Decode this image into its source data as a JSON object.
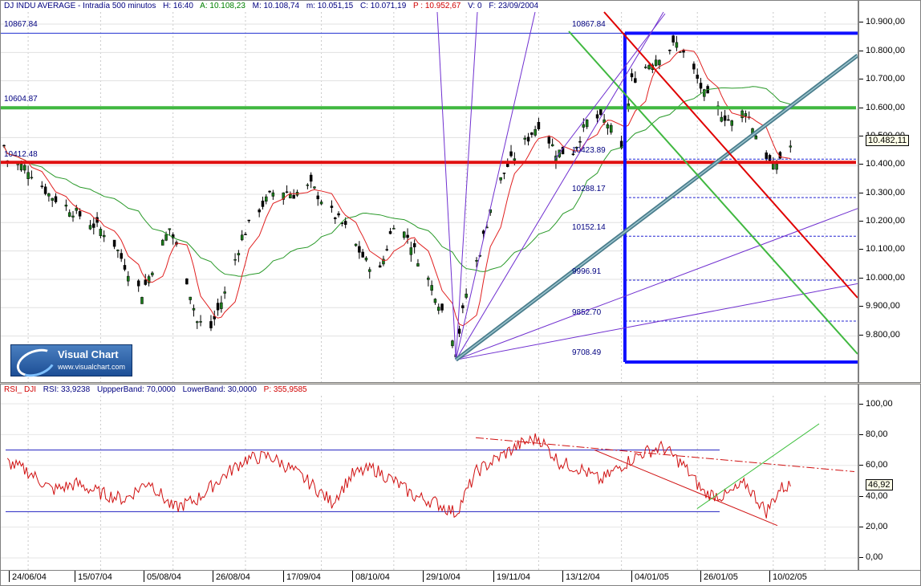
{
  "header": {
    "symbol": "DJ INDU AVERAGE - Intradía 500 minutos",
    "h": "H: 16:40",
    "a": "A: 10.108,23",
    "m": "M: 10.108,74",
    "mn": "m: 10.051,15",
    "c": "C: 10.071,19",
    "p": "P : 10.952,67",
    "v": "V: 0",
    "f": "F: 23/09/2004"
  },
  "rsi_header": {
    "name": "RSI_ DJI",
    "rsi": "RSI: 33,9238",
    "upper": "UppperBand: 70,0000",
    "lower": "LowerBand: 30,0000",
    "p": "P: 355,9585"
  },
  "logo": {
    "title": "Visual Chart",
    "url": "www.visualchart.com"
  },
  "price_axis": {
    "ticks": [
      "10.900,00",
      "10.800,00",
      "10.700,00",
      "10.600,00",
      "10.500,00",
      "10.400,00",
      "10.300,00",
      "10.200,00",
      "10.100,00",
      "10.000,00",
      "9.900,00",
      "9.800,00"
    ],
    "current_value": "10.482,11"
  },
  "rsi_axis": {
    "ticks": [
      "100,00",
      "80,00",
      "60,00",
      "40,00",
      "20,00",
      "0,00"
    ],
    "current_value": "46,92"
  },
  "time_axis": [
    "24/06/04",
    "15/07/04",
    "05/08/04",
    "26/08/04",
    "17/09/04",
    "08/10/04",
    "29/10/04",
    "19/11/04",
    "13/12/04",
    "04/01/05",
    "26/01/05",
    "10/02/05"
  ],
  "levels": {
    "left_top": "10867.84",
    "left_green": "10604.87",
    "left_red": "10412.48",
    "fib": [
      "10867.84",
      "10423.89",
      "10288.17",
      "10152.14",
      "9996.91",
      "9852.70",
      "9708.49"
    ]
  },
  "colors": {
    "candle": "#1a7a1a",
    "ma_fast": "#e02020",
    "ma_slow": "#2a9a2a",
    "support": "#e01010",
    "resistance": "#40b840",
    "fib_box": "#1010ff",
    "fan": "#7030d0",
    "channel": "#4a7d8c",
    "rsi": "#d01010"
  },
  "chart_data": [
    {
      "type": "candlestick",
      "title": "DJ INDU AVERAGE - Intradía 500 minutos",
      "ylim": [
        9700,
        10950
      ],
      "x_labels": [
        "24/06/04",
        "15/07/04",
        "05/08/04",
        "26/08/04",
        "17/09/04",
        "08/10/04",
        "29/10/04",
        "19/11/04",
        "13/12/04",
        "04/01/05",
        "26/01/05",
        "10/02/05"
      ],
      "close_path": [
        [
          "2004-06-18",
          10420
        ],
        [
          "2004-06-24",
          10390
        ],
        [
          "2004-06-30",
          10300
        ],
        [
          "2004-07-06",
          10250
        ],
        [
          "2004-07-12",
          10200
        ],
        [
          "2004-07-18",
          10150
        ],
        [
          "2004-07-22",
          10050
        ],
        [
          "2004-07-27",
          9950
        ],
        [
          "2004-08-01",
          10100
        ],
        [
          "2004-08-04",
          10180
        ],
        [
          "2004-08-08",
          10050
        ],
        [
          "2004-08-12",
          9850
        ],
        [
          "2004-08-16",
          9830
        ],
        [
          "2004-08-20",
          9950
        ],
        [
          "2004-08-25",
          10150
        ],
        [
          "2004-08-30",
          10250
        ],
        [
          "2004-09-04",
          10320
        ],
        [
          "2004-09-09",
          10300
        ],
        [
          "2004-09-14",
          10330
        ],
        [
          "2004-09-19",
          10250
        ],
        [
          "2004-09-24",
          10180
        ],
        [
          "2004-09-30",
          10060
        ],
        [
          "2004-10-04",
          10030
        ],
        [
          "2004-10-08",
          10200
        ],
        [
          "2004-10-12",
          10150
        ],
        [
          "2004-10-16",
          10050
        ],
        [
          "2004-10-20",
          9950
        ],
        [
          "2004-10-25",
          9800
        ],
        [
          "2004-10-26",
          9750
        ],
        [
          "2004-10-29",
          9950
        ],
        [
          "2004-11-02",
          10100
        ],
        [
          "2004-11-06",
          10300
        ],
        [
          "2004-11-10",
          10400
        ],
        [
          "2004-11-16",
          10500
        ],
        [
          "2004-11-19",
          10550
        ],
        [
          "2004-11-24",
          10450
        ],
        [
          "2004-11-29",
          10450
        ],
        [
          "2004-12-04",
          10580
        ],
        [
          "2004-12-09",
          10550
        ],
        [
          "2004-12-13",
          10450
        ],
        [
          "2004-12-16",
          10700
        ],
        [
          "2004-12-20",
          10750
        ],
        [
          "2004-12-25",
          10800
        ],
        [
          "2004-12-29",
          10830
        ],
        [
          "2005-01-02",
          10760
        ],
        [
          "2005-01-06",
          10650
        ],
        [
          "2005-01-10",
          10600
        ],
        [
          "2005-01-14",
          10550
        ],
        [
          "2005-01-18",
          10600
        ],
        [
          "2005-01-22",
          10480
        ],
        [
          "2005-01-26",
          10390
        ],
        [
          "2005-01-30",
          10470
        ]
      ],
      "moving_averages": [
        "fast (red)",
        "slow (green)"
      ],
      "horizontal_levels": [
        10867.84,
        10604.87,
        10412.48
      ],
      "fibonacci_retracement": {
        "from": 9708.49,
        "to": 10867.84,
        "levels": [
          10867.84,
          10423.89,
          10288.17,
          10152.14,
          9996.91,
          9852.7,
          9708.49
        ]
      },
      "current_value": 10482.11
    },
    {
      "type": "line",
      "title": "RSI_ DJI",
      "ylim": [
        0,
        100
      ],
      "upper_band": 70,
      "lower_band": 30,
      "last_value": 46.92,
      "rsi_value": 33.9238,
      "x_labels": [
        "24/06/04",
        "15/07/04",
        "05/08/04",
        "26/08/04",
        "17/09/04",
        "08/10/04",
        "29/10/04",
        "19/11/04",
        "13/12/04",
        "04/01/05",
        "26/01/05",
        "10/02/05"
      ],
      "path": [
        [
          "2004-06-18",
          62
        ],
        [
          "2004-06-24",
          56
        ],
        [
          "2004-07-01",
          44
        ],
        [
          "2004-07-08",
          48
        ],
        [
          "2004-07-15",
          42
        ],
        [
          "2004-07-22",
          38
        ],
        [
          "2004-07-29",
          50
        ],
        [
          "2004-08-05",
          32
        ],
        [
          "2004-08-12",
          38
        ],
        [
          "2004-08-19",
          52
        ],
        [
          "2004-08-26",
          64
        ],
        [
          "2004-09-02",
          66
        ],
        [
          "2004-09-08",
          58
        ],
        [
          "2004-09-14",
          48
        ],
        [
          "2004-09-20",
          36
        ],
        [
          "2004-09-26",
          54
        ],
        [
          "2004-10-02",
          58
        ],
        [
          "2004-10-08",
          50
        ],
        [
          "2004-10-14",
          40
        ],
        [
          "2004-10-20",
          36
        ],
        [
          "2004-10-26",
          29
        ],
        [
          "2004-11-01",
          56
        ],
        [
          "2004-11-08",
          66
        ],
        [
          "2004-11-14",
          74
        ],
        [
          "2004-11-19",
          78
        ],
        [
          "2004-11-25",
          62
        ],
        [
          "2004-12-01",
          58
        ],
        [
          "2004-12-07",
          50
        ],
        [
          "2004-12-13",
          60
        ],
        [
          "2004-12-19",
          68
        ],
        [
          "2004-12-25",
          72
        ],
        [
          "2004-12-31",
          60
        ],
        [
          "2005-01-06",
          42
        ],
        [
          "2005-01-12",
          40
        ],
        [
          "2005-01-18",
          48
        ],
        [
          "2005-01-24",
          30
        ],
        [
          "2005-01-28",
          45
        ],
        [
          "2005-01-31",
          47
        ]
      ]
    }
  ]
}
